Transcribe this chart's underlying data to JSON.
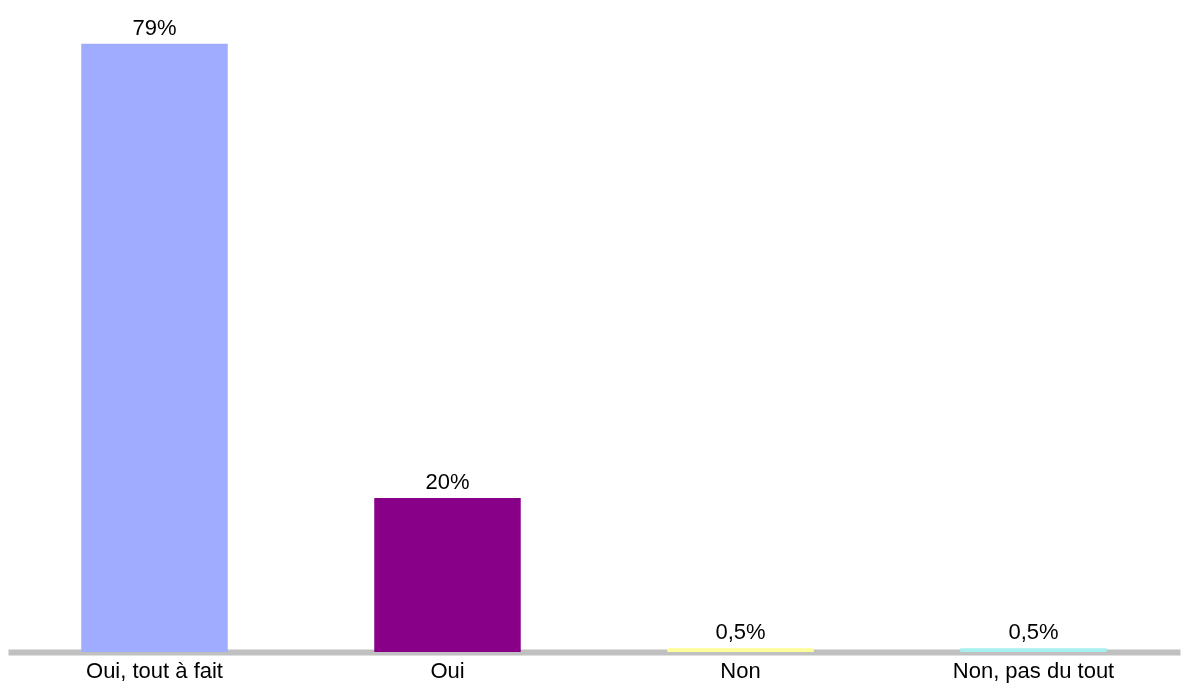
{
  "chart_data": {
    "type": "bar",
    "categories": [
      "Oui, tout à fait",
      "Oui",
      "Non",
      "Non, pas du tout"
    ],
    "values": [
      79,
      20,
      0.5,
      0.5
    ],
    "colors": [
      "#a0acff",
      "#880088",
      "#ffff99",
      "#a6f0f0"
    ],
    "value_labels": [
      "79%",
      "20%",
      "0,5%",
      "0,5%"
    ]
  }
}
